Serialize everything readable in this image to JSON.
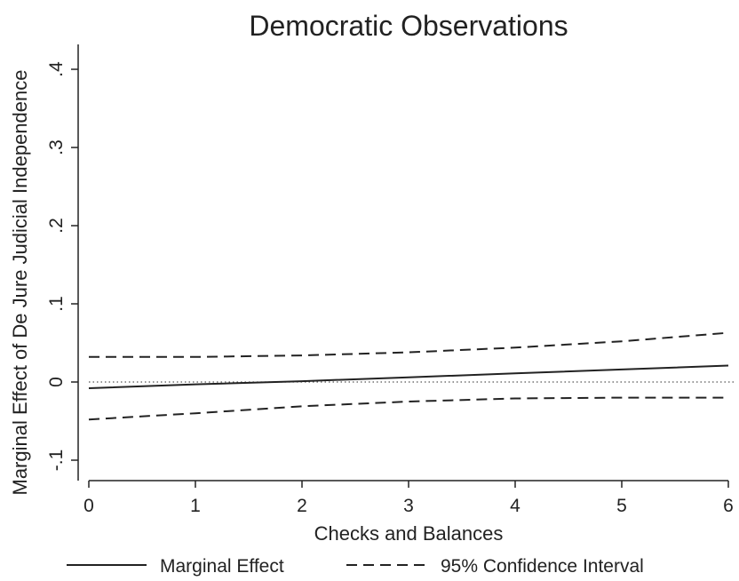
{
  "chart_data": {
    "type": "line",
    "title": "Democratic Observations",
    "xlabel": "Checks and Balances",
    "ylabel": "Marginal Effect of De Jure Judicial Independence",
    "xlim": [
      0,
      6
    ],
    "ylim": [
      -0.1,
      0.4
    ],
    "x_ticks": [
      0,
      1,
      2,
      3,
      4,
      5,
      6
    ],
    "x_tick_labels": [
      "0",
      "1",
      "2",
      "3",
      "4",
      "5",
      "6"
    ],
    "y_ticks": [
      -0.1,
      0,
      0.1,
      0.2,
      0.3,
      0.4
    ],
    "y_tick_labels": [
      "-.1",
      "0",
      ".1",
      ".2",
      ".3",
      ".4"
    ],
    "reference_line": {
      "y": 0,
      "style": "dotted"
    },
    "legend_position": "bottom",
    "series": [
      {
        "name": "Marginal Effect",
        "style": "solid",
        "color": "#222222",
        "x": [
          0,
          1,
          2,
          3,
          4,
          5,
          6
        ],
        "y": [
          -0.008,
          -0.003,
          0.001,
          0.006,
          0.011,
          0.016,
          0.021
        ]
      },
      {
        "name": "95% Confidence Interval",
        "style": "dashed",
        "color": "#222222",
        "x": [
          0,
          1,
          2,
          3,
          4,
          5,
          6
        ],
        "y": [
          0.032,
          0.032,
          0.034,
          0.038,
          0.044,
          0.052,
          0.063
        ]
      },
      {
        "name": "",
        "style": "dashed",
        "color": "#222222",
        "x": [
          0,
          1,
          2,
          3,
          4,
          5,
          6
        ],
        "y": [
          -0.048,
          -0.04,
          -0.031,
          -0.025,
          -0.021,
          -0.02,
          -0.02
        ]
      }
    ]
  }
}
